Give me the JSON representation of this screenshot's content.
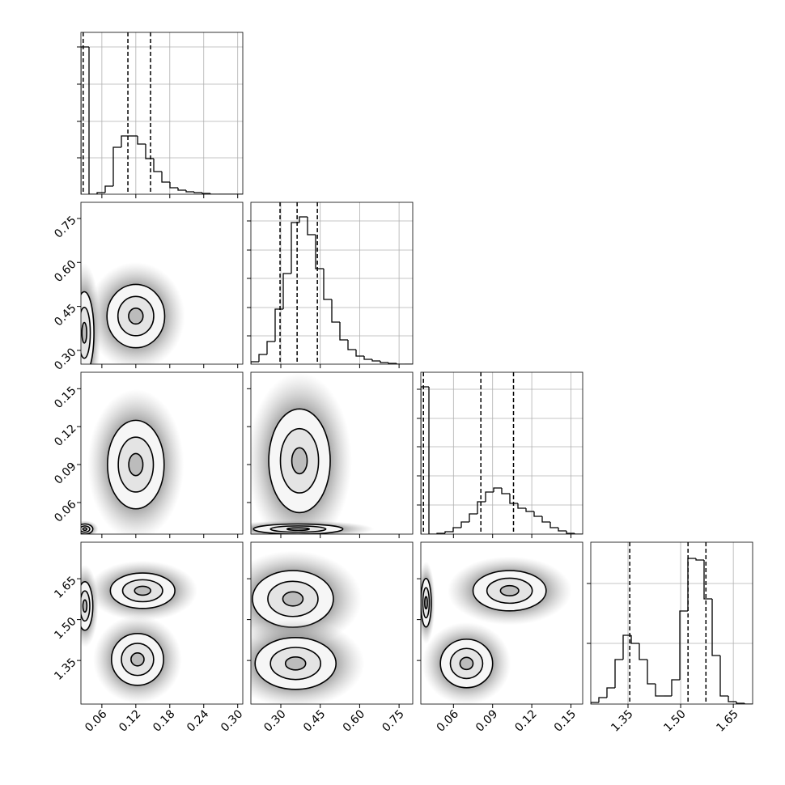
{
  "chart_data": {
    "type": "corner",
    "params": [
      {
        "xlim": [
          0.023,
          0.309
        ],
        "xticks": [
          0.06,
          0.12,
          0.18,
          0.24,
          {
            "value": 0.3,
            "label": "0.30"
          }
        ]
      },
      {
        "xlim": [
          0.186,
          0.802
        ],
        "xticks": [
          {
            "value": 0.3,
            "label": "0.30"
          },
          0.45,
          {
            "value": 0.6,
            "label": "0.60"
          },
          0.75
        ],
        "ylim": [
          0.253,
          0.805
        ],
        "yticks": [
          {
            "value": 0.3,
            "label": "0.30"
          },
          0.45,
          {
            "value": 0.6,
            "label": "0.60"
          },
          0.75
        ]
      },
      {
        "xlim": [
          0.035,
          0.159
        ],
        "xticks": [
          0.06,
          0.09,
          0.12,
          0.15
        ],
        "ylim": [
          0.035,
          0.163
        ],
        "yticks": [
          0.06,
          0.09,
          0.12,
          0.15
        ]
      },
      {
        "xlim": [
          1.244,
          1.705
        ],
        "xticks": [
          1.35,
          {
            "value": 1.5,
            "label": "1.50"
          },
          1.65
        ],
        "ylim": [
          1.19,
          1.784
        ],
        "yticks": [
          1.35,
          {
            "value": 1.5,
            "label": "1.50"
          },
          1.65
        ]
      }
    ],
    "hists": [
      {
        "bins": [
          0.023,
          0.0373,
          0.0516,
          0.0659,
          0.0802,
          0.0945,
          0.1088,
          0.1231,
          0.1374,
          0.1517,
          0.166,
          0.1803,
          0.1946,
          0.2089,
          0.2232,
          0.2375,
          0.2518,
          0.2661,
          0.2804,
          0.2947,
          0.309
        ],
        "counts": [
          182,
          0,
          2,
          10,
          58,
          72,
          72,
          62,
          44,
          28,
          15,
          8,
          5,
          3,
          2,
          1,
          0,
          0,
          0,
          0
        ],
        "ylim": [
          0,
          200
        ],
        "yticks": [
          45,
          90,
          136,
          182
        ],
        "quantiles": [
          0.027,
          0.106,
          0.146
        ]
      },
      {
        "bins": [
          0.186,
          0.2168,
          0.2476,
          0.2784,
          0.3092,
          0.34,
          0.3708,
          0.4016,
          0.4324,
          0.4632,
          0.494,
          0.5248,
          0.5556,
          0.5864,
          0.6172,
          0.648,
          0.6788,
          0.7096,
          0.7404,
          0.7712,
          0.802
        ],
        "counts": [
          3,
          12,
          28,
          68,
          112,
          175,
          182,
          160,
          118,
          80,
          52,
          30,
          18,
          10,
          6,
          4,
          2,
          1,
          0,
          0
        ],
        "ylim": [
          0,
          200
        ],
        "yticks": [
          35,
          70,
          106,
          141,
          177
        ],
        "quantiles": [
          0.297,
          0.362,
          0.439
        ]
      },
      {
        "bins": [
          0.035,
          0.0412,
          0.0474,
          0.0536,
          0.0598,
          0.066,
          0.0722,
          0.0784,
          0.0846,
          0.0908,
          0.097,
          0.1032,
          0.1094,
          0.1156,
          0.1218,
          0.128,
          0.1342,
          0.1404,
          0.1466,
          0.1528,
          0.159
        ],
        "counts": [
          182,
          0,
          1,
          3,
          8,
          15,
          25,
          40,
          52,
          57,
          50,
          38,
          32,
          28,
          22,
          15,
          8,
          4,
          1,
          0
        ],
        "ylim": [
          0,
          200
        ],
        "yticks": [
          36,
          72,
          108,
          143,
          179
        ],
        "quantiles": [
          0.037,
          0.081,
          0.106
        ]
      },
      {
        "bins": [
          1.244,
          1.267,
          1.2901,
          1.3132,
          1.3362,
          1.3593,
          1.3823,
          1.4054,
          1.4284,
          1.4515,
          1.4745,
          1.4976,
          1.5206,
          1.5437,
          1.5667,
          1.5898,
          1.6128,
          1.6359,
          1.6589,
          1.682,
          1.705
        ],
        "counts": [
          2,
          8,
          20,
          55,
          85,
          75,
          55,
          25,
          10,
          10,
          30,
          115,
          180,
          178,
          130,
          60,
          10,
          3,
          1,
          0
        ],
        "ylim": [
          0,
          200
        ],
        "yticks": [
          75,
          149
        ],
        "quantiles": [
          1.355,
          1.521,
          1.572
        ]
      }
    ],
    "pairs": [
      {
        "blobs": [
          {
            "x": 0.12,
            "y": 0.417,
            "xhalf": 0.051,
            "yhalf": 0.108
          },
          {
            "x": 0.029,
            "y": 0.36,
            "xhalf": 0.017,
            "yhalf": 0.14
          }
        ]
      },
      {
        "blobs": [
          {
            "x": 0.12,
            "y": 0.09,
            "xhalf": 0.05,
            "yhalf": 0.035
          },
          {
            "x": 0.03,
            "y": 0.039,
            "xhalf": 0.014,
            "yhalf": 0.004
          }
        ]
      },
      {
        "blobs": [
          {
            "x": 0.371,
            "y": 0.093,
            "xhalf": 0.117,
            "yhalf": 0.041
          },
          {
            "x": 0.366,
            "y": 0.039,
            "xhalf": 0.17,
            "yhalf": 0.004
          }
        ]
      },
      {
        "blobs": [
          {
            "x": 0.132,
            "y": 1.606,
            "xhalf": 0.057,
            "yhalf": 0.065
          },
          {
            "x": 0.123,
            "y": 1.354,
            "xhalf": 0.046,
            "yhalf": 0.095
          },
          {
            "x": 0.03,
            "y": 1.55,
            "xhalf": 0.014,
            "yhalf": 0.089
          }
        ]
      },
      {
        "blobs": [
          {
            "x": 0.346,
            "y": 1.576,
            "xhalf": 0.154,
            "yhalf": 0.104
          },
          {
            "x": 0.356,
            "y": 1.339,
            "xhalf": 0.154,
            "yhalf": 0.095
          }
        ]
      },
      {
        "blobs": [
          {
            "x": 0.103,
            "y": 1.606,
            "xhalf": 0.028,
            "yhalf": 0.074
          },
          {
            "x": 0.07,
            "y": 1.339,
            "xhalf": 0.02,
            "yhalf": 0.089
          },
          {
            "x": 0.039,
            "y": 1.562,
            "xhalf": 0.004,
            "yhalf": 0.089
          }
        ]
      }
    ]
  }
}
